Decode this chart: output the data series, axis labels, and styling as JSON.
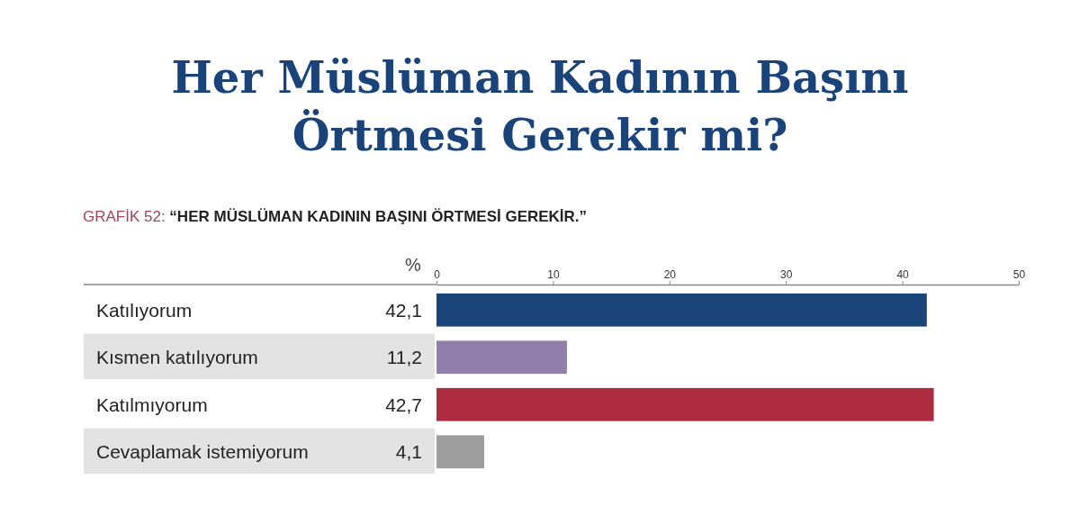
{
  "chart_data": {
    "type": "bar",
    "orientation": "horizontal",
    "title": "Her Müslüman Kadının Başını Örtmesi Gerekir mi?",
    "subtitle": "GRAFİK 52: “HER MÜSLÜMAN KADININ BAŞINI ÖRTMESİ GEREKİR.”",
    "xlabel": "%",
    "categories": [
      "Katılıyorum",
      "Kısmen katılıyorum",
      "Katılmıyorum",
      "Cevaplamak istemiyorum"
    ],
    "values": [
      42.1,
      11.2,
      42.7,
      4.1
    ],
    "value_labels": [
      "42,1",
      "11,2",
      "42,7",
      "4,1"
    ],
    "colors": [
      "#1b4479",
      "#8f7faa",
      "#ad2c40",
      "#9e9e9e"
    ],
    "xlim": [
      0,
      50
    ],
    "xticks": [
      0,
      10,
      20,
      30,
      40,
      50
    ],
    "grid": false
  }
}
